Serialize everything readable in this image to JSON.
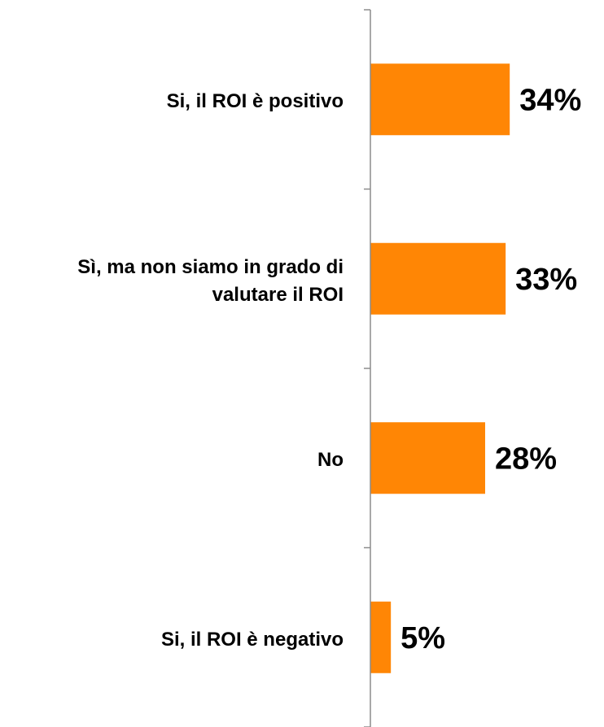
{
  "chart_data": {
    "type": "barh",
    "categories": [
      "Si, il ROI è positivo",
      "Sì, ma non siamo in grado di valutare il ROI",
      "No",
      "Si, il ROI è negativo"
    ],
    "values": [
      34,
      33,
      28,
      5
    ],
    "value_labels": [
      "34%",
      "33%",
      "28%",
      "5%"
    ],
    "color": "#ff8605",
    "xlim": [
      0,
      57
    ]
  }
}
